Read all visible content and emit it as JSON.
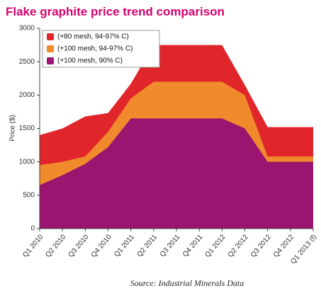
{
  "chart_data": {
    "type": "area",
    "title": "Flake graphite price trend comparison",
    "y_label": "Price ($)",
    "source": "Source: Industrial Minerals Data",
    "categories": [
      "Q1 2010",
      "Q2 2010",
      "Q3 2010",
      "Q4 2010",
      "Q1 2011",
      "Q2 2011",
      "Q3 2011",
      "Q4 2011",
      "Q1 2012",
      "Q2 2012",
      "Q3 2012",
      "Q4 2012",
      "Q1 2013 (f)"
    ],
    "series": [
      {
        "name": "(+80 mesh, 94-97% C)",
        "color": "#e0262b",
        "values": [
          1400,
          1500,
          1680,
          1730,
          2170,
          2750,
          2750,
          2750,
          2750,
          2150,
          1520,
          1520,
          1520
        ]
      },
      {
        "name": "(+100 mesh, 94-97% C)",
        "color": "#f08a2c",
        "values": [
          950,
          1000,
          1080,
          1450,
          1950,
          2200,
          2200,
          2200,
          2200,
          2000,
          1080,
          1080,
          1080
        ]
      },
      {
        "name": "(+100 mesh, 90% C)",
        "color": "#9a1470",
        "values": [
          650,
          800,
          970,
          1220,
          1650,
          1650,
          1650,
          1650,
          1650,
          1500,
          1000,
          1000,
          1000
        ]
      }
    ],
    "ylim": [
      0,
      3000
    ],
    "yticks": [
      0,
      500,
      1000,
      1500,
      2000,
      2500,
      3000
    ],
    "legend": "top-left",
    "grid": false
  }
}
